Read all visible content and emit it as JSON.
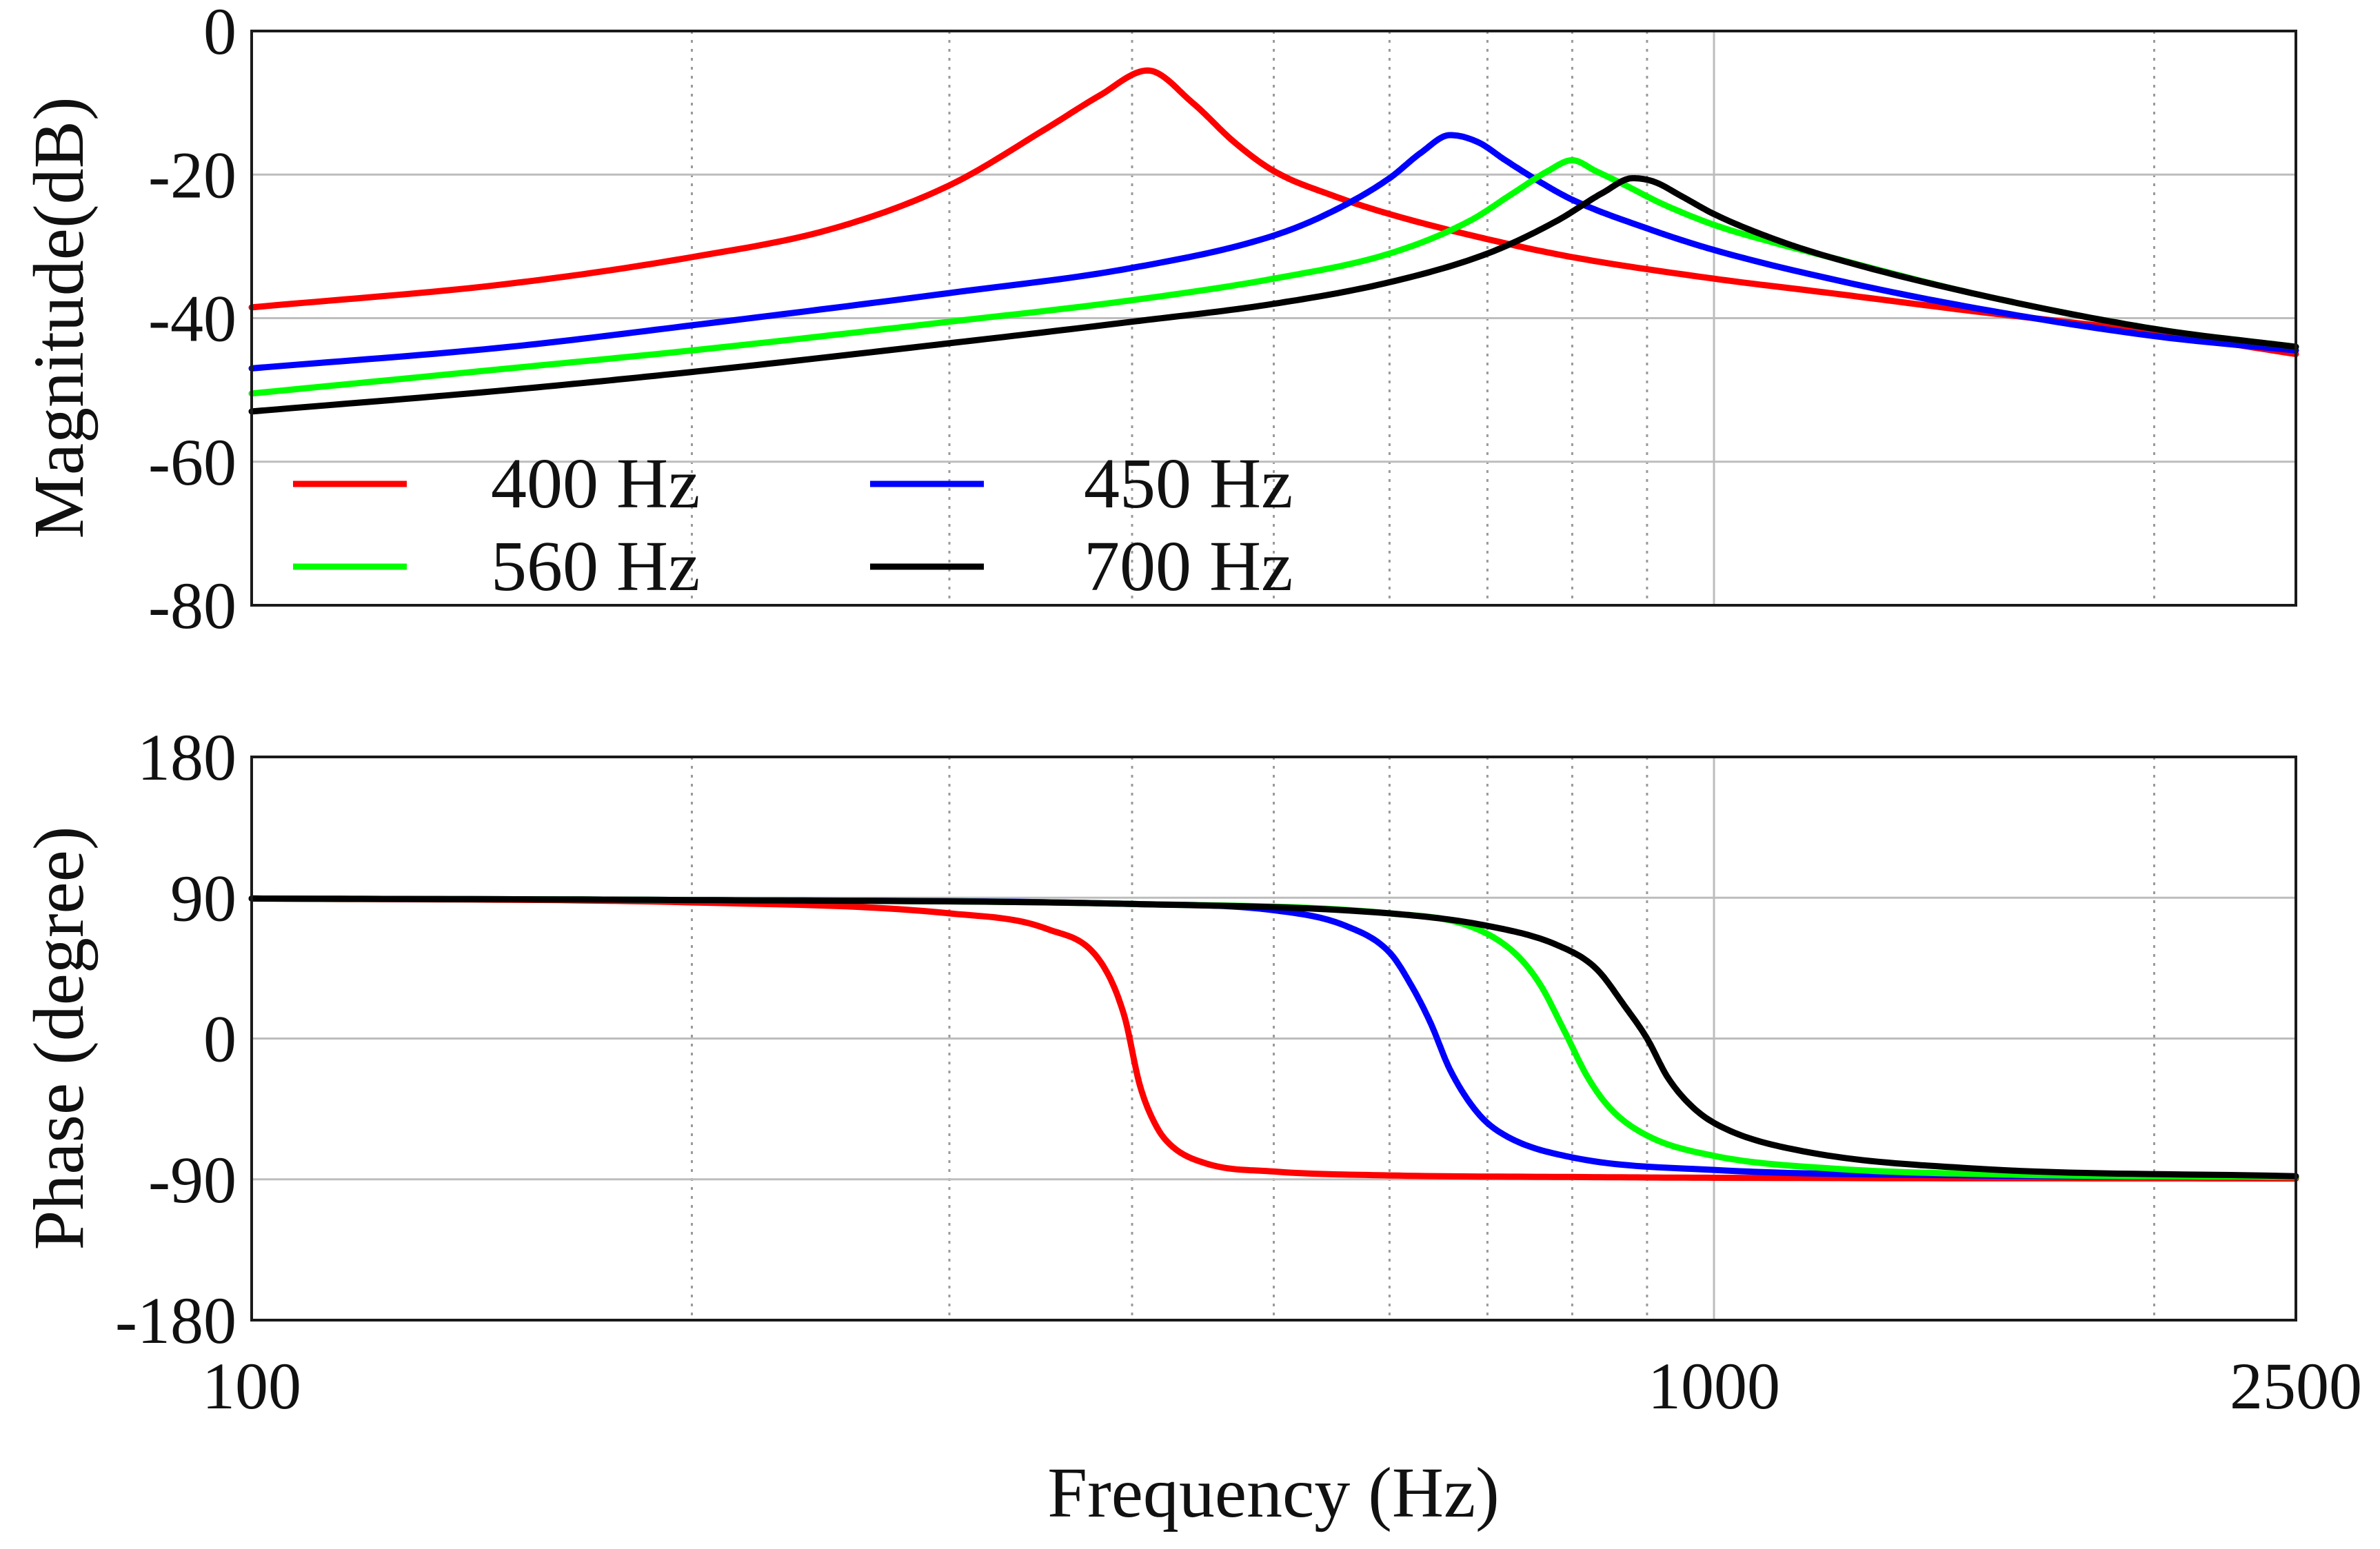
{
  "chart_data": [
    {
      "type": "line",
      "id": "magnitude",
      "xscale": "log",
      "xlim": [
        100,
        2500
      ],
      "ylim": [
        -80,
        0
      ],
      "yticks": [
        0,
        -20,
        -40,
        -60,
        -80
      ],
      "ytick_labels": [
        "0",
        "-20",
        "-40",
        "-60",
        "-80"
      ],
      "xticks": [
        100,
        1000,
        2500
      ],
      "xtick_labels": [
        "100",
        "1000",
        "2500"
      ],
      "xlabel": "",
      "ylabel": "Magnitude(dB)",
      "grid": true,
      "legend": "lower-left",
      "series": [
        {
          "name": "400 Hz",
          "color": "#ff0000",
          "x": [
            100,
            150,
            200,
            250,
            300,
            350,
            380,
            410,
            440,
            470,
            500,
            550,
            600,
            700,
            800,
            1000,
            1200,
            1500,
            2000,
            2500
          ],
          "y": [
            -38.5,
            -35.2,
            -31.5,
            -27.5,
            -21.5,
            -13.5,
            -9,
            -5.5,
            -10,
            -15.5,
            -19.5,
            -23,
            -25.5,
            -29,
            -31.5,
            -34.5,
            -36.5,
            -39,
            -42,
            -45
          ]
        },
        {
          "name": "450 Hz",
          "color": "#0000ff",
          "x": [
            100,
            150,
            200,
            300,
            400,
            500,
            550,
            600,
            630,
            660,
            690,
            720,
            760,
            800,
            900,
            1000,
            1200,
            1500,
            2000,
            2500
          ],
          "y": [
            -47,
            -44,
            -41,
            -36.5,
            -33,
            -28.5,
            -25,
            -20.5,
            -17,
            -14.5,
            -15.5,
            -18,
            -21,
            -23.5,
            -27.5,
            -30.5,
            -34.5,
            -38.5,
            -42.5,
            -44.5
          ]
        },
        {
          "name": "560 Hz",
          "color": "#00ff00",
          "x": [
            100,
            150,
            200,
            300,
            400,
            500,
            600,
            680,
            730,
            770,
            800,
            830,
            870,
            920,
            1000,
            1100,
            1200,
            1500,
            2000,
            2500
          ],
          "y": [
            -50.5,
            -47,
            -44.5,
            -40.5,
            -37.5,
            -34.5,
            -31,
            -26.5,
            -22.5,
            -19.5,
            -18,
            -19.5,
            -21.5,
            -24,
            -27,
            -29.5,
            -31.5,
            -36.5,
            -41.5,
            -44
          ]
        },
        {
          "name": "700 Hz",
          "color": "#000000",
          "x": [
            100,
            150,
            200,
            300,
            400,
            500,
            600,
            700,
            780,
            840,
            880,
            910,
            950,
            1000,
            1100,
            1200,
            1500,
            2000,
            2500
          ],
          "y": [
            -53,
            -50,
            -47.5,
            -43.5,
            -40.5,
            -38,
            -35,
            -31,
            -26.5,
            -22.5,
            -20.5,
            -21,
            -23,
            -25.5,
            -29,
            -31.5,
            -36.5,
            -41.5,
            -44
          ]
        }
      ]
    },
    {
      "type": "line",
      "id": "phase",
      "xscale": "log",
      "xlim": [
        100,
        2500
      ],
      "ylim": [
        -180,
        180
      ],
      "yticks": [
        180,
        90,
        0,
        -90,
        -180
      ],
      "ytick_labels": [
        "180",
        "90",
        "0",
        "-90",
        "-180"
      ],
      "xticks": [
        100,
        1000,
        2500
      ],
      "xtick_labels": [
        "100",
        "1000",
        "2500"
      ],
      "xlabel": "Frequency (Hz)",
      "ylabel": "Phase (degree)",
      "grid": true,
      "series": [
        {
          "name": "400 Hz",
          "color": "#ff0000",
          "x": [
            100,
            200,
            300,
            350,
            380,
            395,
            405,
            415,
            425,
            450,
            500,
            600,
            800,
            1000,
            2500
          ],
          "y": [
            89.5,
            87,
            80,
            70,
            50,
            15,
            -30,
            -55,
            -68,
            -80,
            -85,
            -87.5,
            -88.5,
            -89,
            -89.5
          ]
        },
        {
          "name": "450 Hz",
          "color": "#0000ff",
          "x": [
            100,
            200,
            400,
            500,
            560,
            600,
            620,
            640,
            660,
            690,
            720,
            800,
            1000,
            1500,
            2500
          ],
          "y": [
            89.5,
            88.5,
            86,
            82,
            72,
            55,
            35,
            10,
            -20,
            -48,
            -62,
            -76,
            -84,
            -87.5,
            -88.5
          ]
        },
        {
          "name": "560 Hz",
          "color": "#00ff00",
          "x": [
            100,
            200,
            400,
            600,
            680,
            730,
            760,
            790,
            820,
            850,
            900,
            1000,
            1200,
            1600,
            2500
          ],
          "y": [
            89.5,
            88.5,
            86,
            80,
            72,
            55,
            35,
            5,
            -25,
            -45,
            -62,
            -75,
            -83,
            -87,
            -88.5
          ]
        },
        {
          "name": "700 Hz",
          "color": "#000000",
          "x": [
            100,
            200,
            400,
            600,
            700,
            780,
            830,
            870,
            900,
            930,
            970,
            1020,
            1150,
            1500,
            2500
          ],
          "y": [
            89.5,
            88.5,
            86,
            80,
            72,
            60,
            45,
            20,
            0,
            -25,
            -45,
            -58,
            -72,
            -83,
            -88
          ]
        }
      ]
    }
  ]
}
